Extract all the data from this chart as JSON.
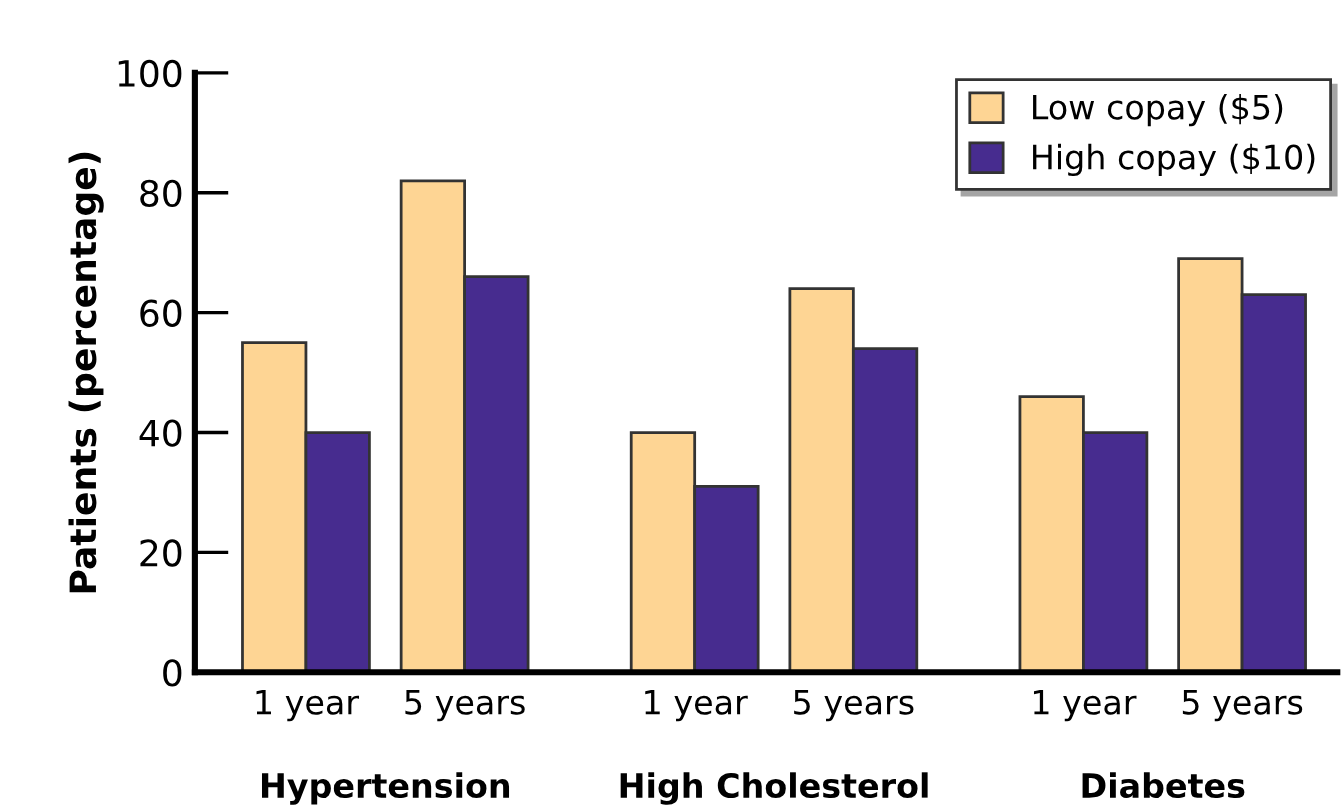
{
  "chart_data": {
    "type": "bar",
    "ylabel": "Patients (percentage)",
    "categories": [
      "1 year",
      "5 years",
      "1 year",
      "5 years",
      "1 year",
      "5 years"
    ],
    "annotations": [
      "Hypertension",
      "High Cholesterol",
      "Diabetes"
    ],
    "series": [
      {
        "name": "Low copay ($5)",
        "color": "#fed594",
        "values": [
          55,
          82,
          40,
          64,
          46,
          69
        ]
      },
      {
        "name": "High copay ($10)",
        "color": "#472c8f",
        "values": [
          40,
          66,
          31,
          54,
          40,
          63
        ]
      }
    ],
    "ylim": [
      0,
      100
    ],
    "yticks": [
      0,
      20,
      40,
      60,
      80,
      100
    ],
    "grid": false,
    "legend": "top right"
  }
}
